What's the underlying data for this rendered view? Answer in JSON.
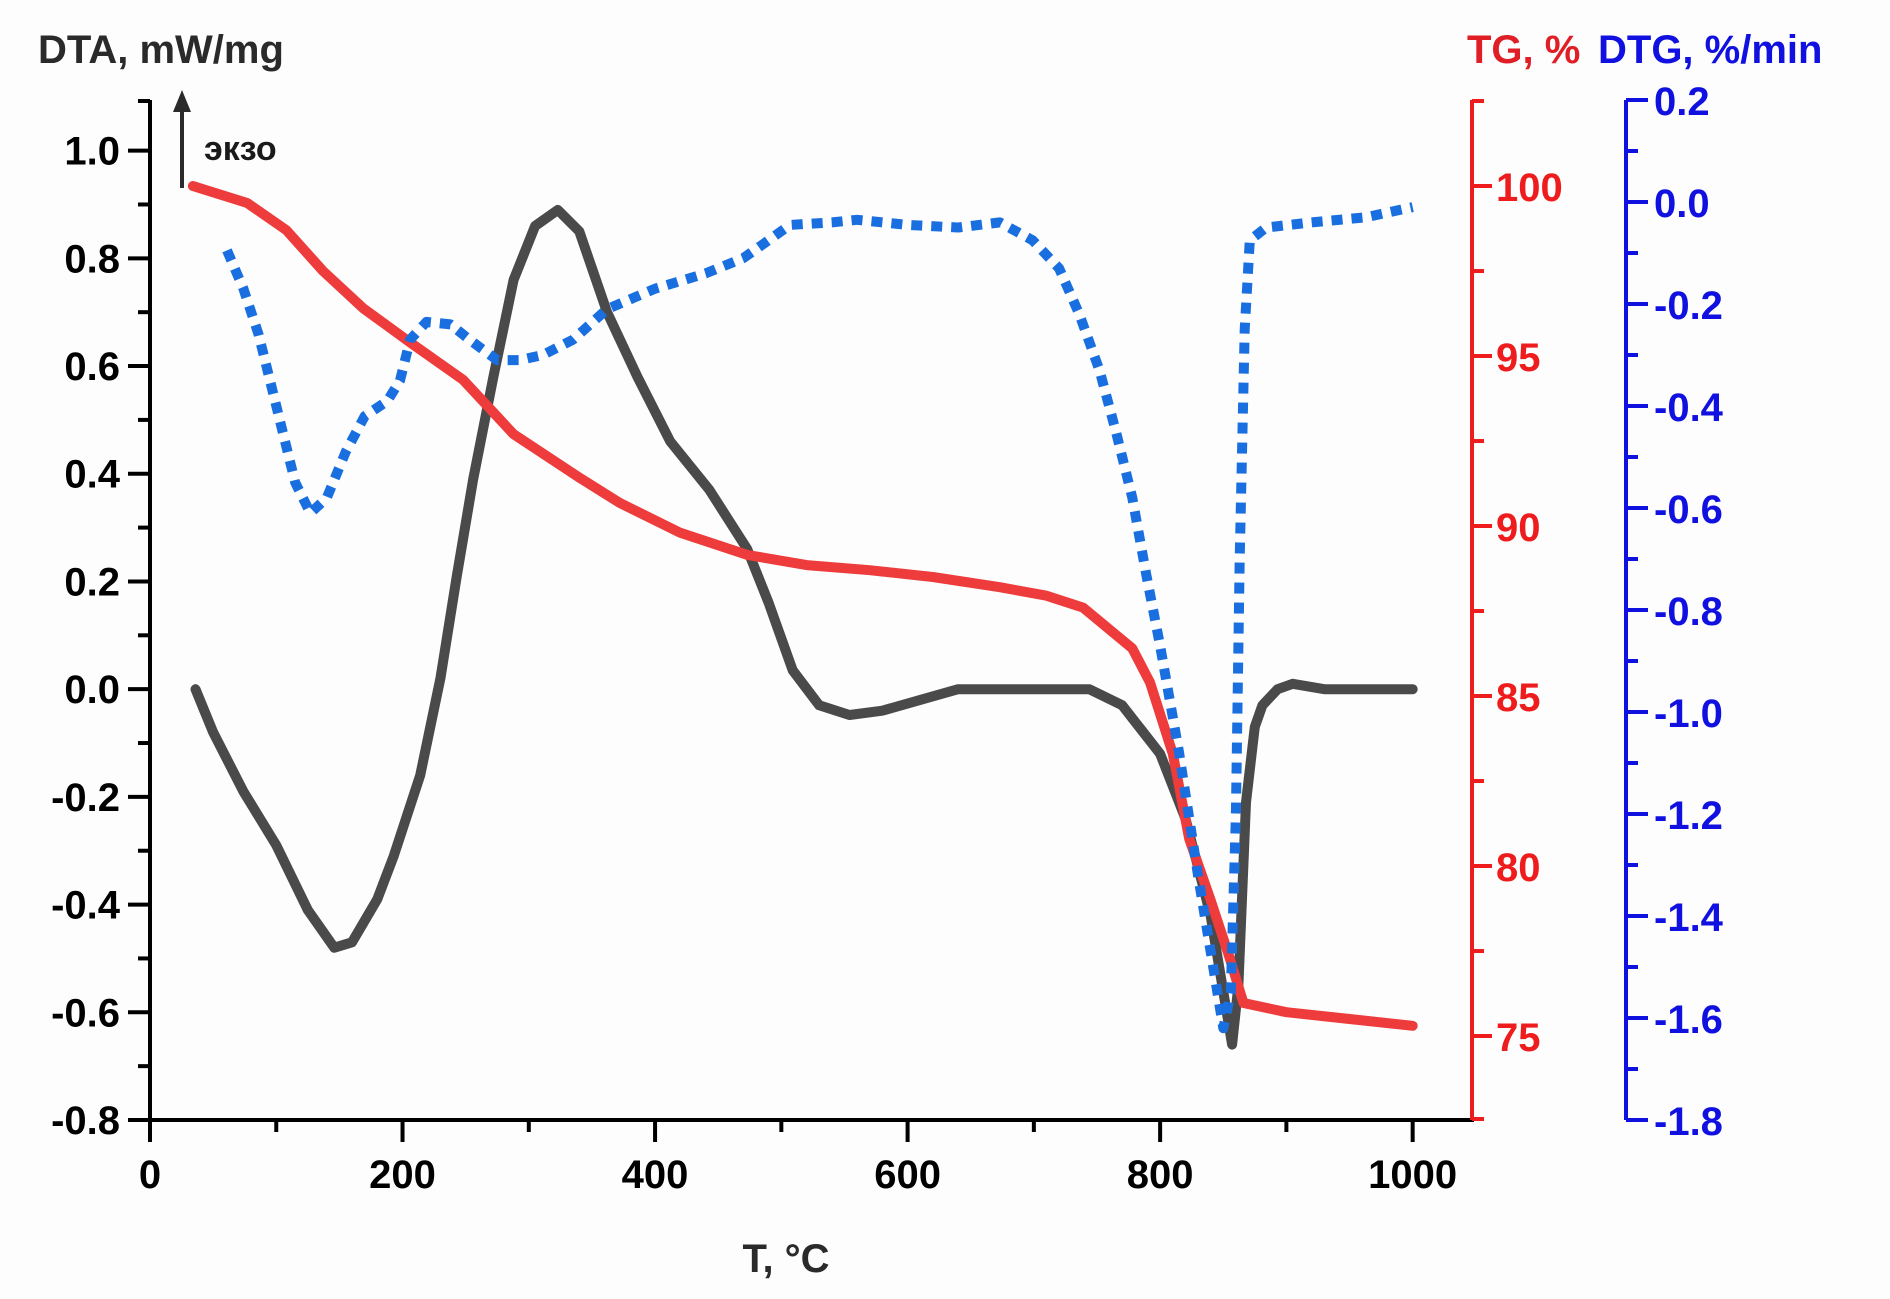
{
  "chart_data": {
    "type": "line",
    "title": "",
    "xlabel": "T, °C",
    "xlim": [
      0,
      1047
    ],
    "x_ticks": [
      0,
      200,
      400,
      600,
      800,
      1000
    ],
    "x_tick_labels": [
      "0",
      "200",
      "400",
      "600",
      "800",
      "1000"
    ],
    "grid": false,
    "annotation": {
      "text": "экзо",
      "arrow": "up"
    },
    "axes": {
      "dta": {
        "label": "DTA, mW/mg",
        "side": "left",
        "color": "#1a1a1a",
        "ylim": [
          -0.8,
          1.094
        ],
        "ticks": [
          -0.8,
          -0.6,
          -0.4,
          -0.2,
          0.0,
          0.2,
          0.4,
          0.6,
          0.8,
          1.0
        ],
        "tick_labels": [
          "-0.8",
          "-0.6",
          "-0.4",
          "-0.2",
          "0.0",
          "0.2",
          "0.4",
          "0.6",
          "0.8",
          "1.0"
        ]
      },
      "tg": {
        "label": "TG, %",
        "side": "right",
        "color": "#ee1c1c",
        "ylim": [
          72.53,
          102.53
        ],
        "ticks": [
          75,
          80,
          85,
          90,
          95,
          100
        ],
        "tick_labels": [
          "75",
          "80",
          "85",
          "90",
          "95",
          "100"
        ]
      },
      "dtg": {
        "label": "DTG, %/min",
        "side": "right-outer",
        "color": "#1010e0",
        "ylim": [
          -1.8,
          0.2
        ],
        "ticks": [
          -1.8,
          -1.6,
          -1.4,
          -1.2,
          -1.0,
          -0.8,
          -0.6,
          -0.4,
          -0.2,
          0.0,
          0.2
        ],
        "tick_labels": [
          "-1.8",
          "-1.6",
          "-1.4",
          "-1.2",
          "-1.0",
          "-0.8",
          "-0.6",
          "-0.4",
          "-0.2",
          "0.0",
          "0.2"
        ]
      }
    },
    "series": [
      {
        "name": "DTA",
        "axis": "dta",
        "color": "#4a4a4a",
        "style": "solid",
        "x": [
          36,
          50,
          74,
          100,
          125,
          146,
          160,
          180,
          193,
          214,
          230,
          243,
          256,
          272,
          288,
          305,
          323,
          340,
          362,
          386,
          412,
          443,
          473,
          490,
          509,
          530,
          554,
          580,
          610,
          640,
          660,
          700,
          744,
          770,
          800,
          820,
          840,
          857,
          862,
          868,
          875,
          881,
          893,
          905,
          930,
          1000
        ],
        "y": [
          0.0,
          -0.08,
          -0.19,
          -0.29,
          -0.41,
          -0.48,
          -0.47,
          -0.39,
          -0.31,
          -0.16,
          0.02,
          0.21,
          0.39,
          0.58,
          0.76,
          0.86,
          0.89,
          0.85,
          0.7,
          0.58,
          0.46,
          0.37,
          0.26,
          0.16,
          0.035,
          -0.03,
          -0.048,
          -0.04,
          -0.02,
          0.0,
          0.0,
          0.0,
          0.0,
          -0.03,
          -0.12,
          -0.24,
          -0.42,
          -0.66,
          -0.55,
          -0.21,
          -0.07,
          -0.03,
          0.0,
          0.01,
          0.0,
          0.0
        ]
      },
      {
        "name": "TG",
        "axis": "tg",
        "color": "#ee3b3b",
        "style": "solid",
        "x": [
          34,
          77,
          108,
          137,
          169,
          206,
          248,
          288,
          341,
          372,
          420,
          473,
          520,
          570,
          620,
          673,
          710,
          739,
          778,
          792,
          810,
          823,
          840,
          855,
          866,
          900,
          950,
          1000
        ],
        "y": [
          100.0,
          99.5,
          98.7,
          97.5,
          96.4,
          95.4,
          94.3,
          92.7,
          91.4,
          90.68,
          89.8,
          89.15,
          88.85,
          88.7,
          88.5,
          88.2,
          87.95,
          87.6,
          86.4,
          85.4,
          83.3,
          80.8,
          79.0,
          77.3,
          75.97,
          75.7,
          75.5,
          75.3
        ]
      },
      {
        "name": "DTG",
        "axis": "dtg",
        "color": "#1a6fe0",
        "style": "dotted",
        "x": [
          61,
          74,
          86,
          100,
          115,
          127,
          140,
          155,
          170,
          188,
          198,
          206,
          219,
          238,
          253,
          275,
          293,
          311,
          335,
          362,
          400,
          440,
          470,
          507,
          540,
          560,
          600,
          640,
          673,
          699,
          720,
          736,
          752,
          765,
          778,
          789,
          800,
          815,
          830,
          850,
          856,
          860,
          863,
          867,
          871,
          884,
          920,
          963,
          1000
        ],
        "y": [
          -0.095,
          -0.17,
          -0.26,
          -0.4,
          -0.55,
          -0.61,
          -0.58,
          -0.49,
          -0.42,
          -0.39,
          -0.35,
          -0.27,
          -0.235,
          -0.24,
          -0.27,
          -0.31,
          -0.31,
          -0.3,
          -0.27,
          -0.21,
          -0.17,
          -0.14,
          -0.11,
          -0.045,
          -0.04,
          -0.035,
          -0.045,
          -0.05,
          -0.04,
          -0.075,
          -0.13,
          -0.22,
          -0.33,
          -0.45,
          -0.58,
          -0.73,
          -0.87,
          -1.08,
          -1.32,
          -1.62,
          -1.55,
          -1.2,
          -0.7,
          -0.25,
          -0.075,
          -0.05,
          -0.04,
          -0.03,
          -0.01
        ]
      }
    ]
  }
}
